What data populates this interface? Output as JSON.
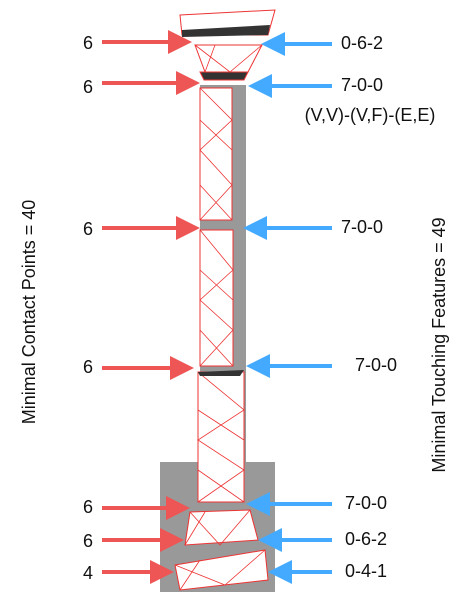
{
  "left_labels": [
    "6",
    "6",
    "6",
    "6",
    "6",
    "6",
    "4"
  ],
  "right_labels": [
    "0-6-2",
    "7-0-0",
    "7-0-0",
    "7-0-0",
    "7-0-0",
    "0-6-2",
    "0-4-1"
  ],
  "right_note": "(V,V)-(V,F)-(E,E)",
  "left_caption": "Minimal  Contact Points = 40",
  "right_caption": "Minimal  Touching Features = 49"
}
